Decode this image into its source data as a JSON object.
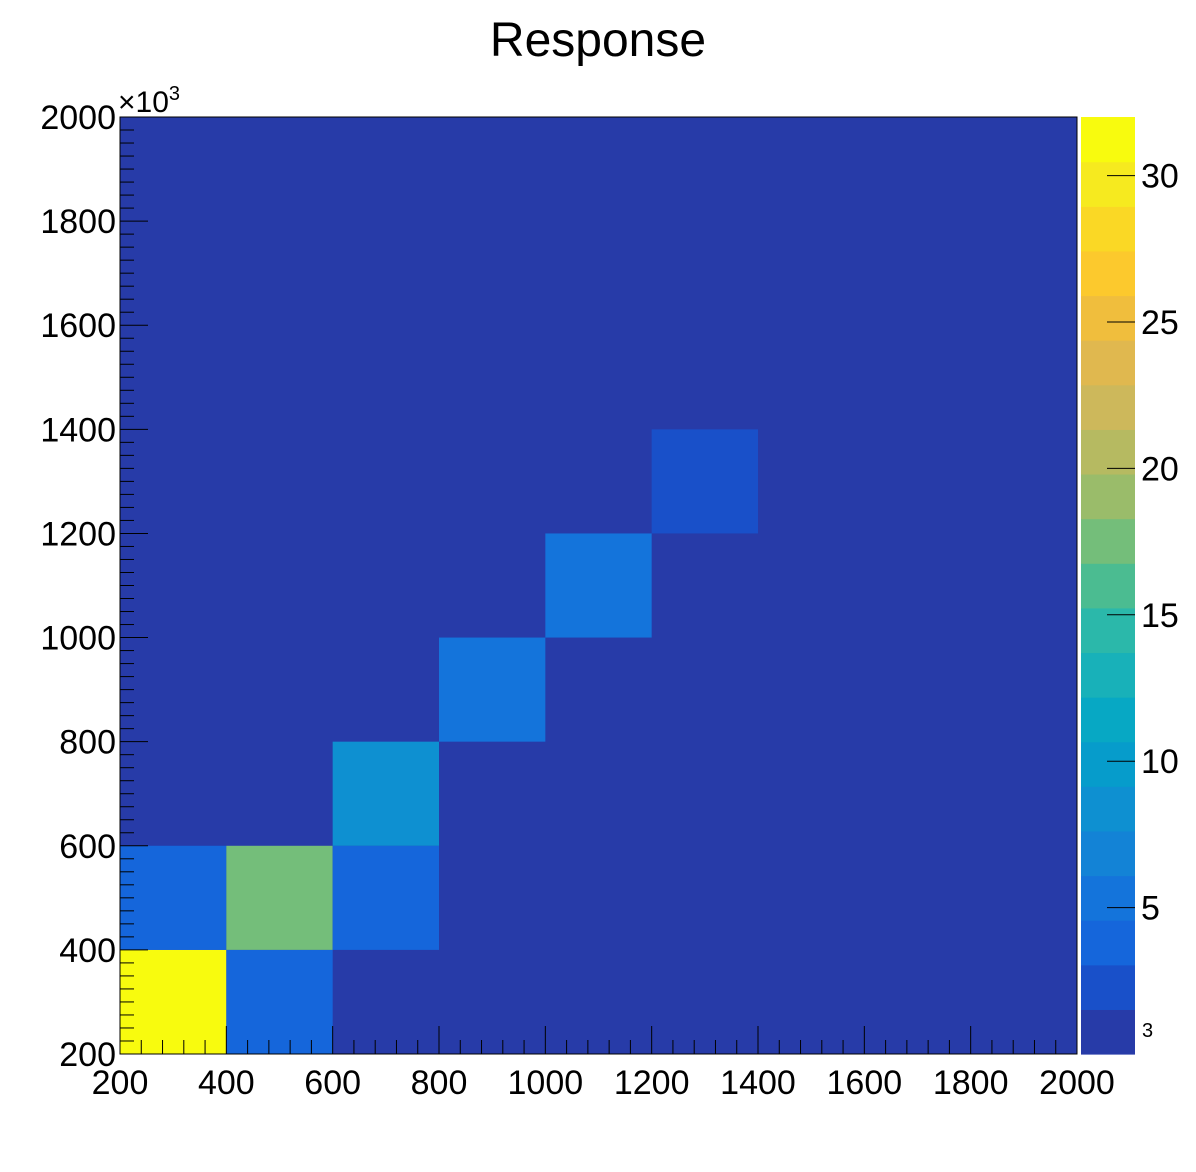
{
  "chart_data": {
    "type": "heatmap",
    "title": "Response",
    "xlabel": "",
    "ylabel": "",
    "xlim": [
      200,
      2000
    ],
    "ylim": [
      200,
      2000
    ],
    "y_multiplier": "×10",
    "y_multiplier_exp": "3",
    "z_multiplier_exp": "3",
    "x_ticks": [
      200,
      400,
      600,
      800,
      1000,
      1200,
      1400,
      1600,
      1800,
      2000
    ],
    "x_tick_labels": [
      "200",
      "400",
      "600",
      "800",
      "1000",
      "1200",
      "1400",
      "1600",
      "1800",
      "2000"
    ],
    "y_ticks": [
      200,
      400,
      600,
      800,
      1000,
      1200,
      1400,
      1600,
      1800,
      2000
    ],
    "y_tick_labels": [
      "200",
      "400",
      "600",
      "800",
      "1000",
      "1200",
      "1400",
      "1600",
      "1800",
      "2000"
    ],
    "bin_width": 200,
    "bins": [
      {
        "x": [
          200,
          400
        ],
        "y": [
          200,
          400
        ],
        "z": 32
      },
      {
        "x": [
          400,
          600
        ],
        "y": [
          200,
          400
        ],
        "z": 3.5
      },
      {
        "x": [
          200,
          400
        ],
        "y": [
          400,
          600
        ],
        "z": 3.5
      },
      {
        "x": [
          400,
          600
        ],
        "y": [
          400,
          600
        ],
        "z": 18
      },
      {
        "x": [
          600,
          800
        ],
        "y": [
          400,
          600
        ],
        "z": 3.5
      },
      {
        "x": [
          600,
          800
        ],
        "y": [
          600,
          800
        ],
        "z": 9
      },
      {
        "x": [
          800,
          1000
        ],
        "y": [
          800,
          1000
        ],
        "z": 6
      },
      {
        "x": [
          1000,
          1200
        ],
        "y": [
          1000,
          1200
        ],
        "z": 5
      },
      {
        "x": [
          1200,
          1400
        ],
        "y": [
          1200,
          1400
        ],
        "z": 3
      }
    ],
    "background_z": 0,
    "zlim": [
      0,
      32
    ],
    "z_ticks": [
      5,
      10,
      15,
      20,
      25,
      30
    ],
    "z_tick_labels": [
      "5",
      "10",
      "15",
      "20",
      "25",
      "30"
    ],
    "palette": [
      "#273ba8",
      "#1950c9",
      "#1566db",
      "#1474db",
      "#1383d6",
      "#0e90d1",
      "#069ccb",
      "#07a8c4",
      "#18b1b9",
      "#2bb8aa",
      "#4bbc91",
      "#74be7a",
      "#9abc6a",
      "#b6ba61",
      "#cdb85b",
      "#e0b84f",
      "#f0be3d",
      "#fcc92d",
      "#fad825",
      "#f6ea1f",
      "#f8fb0e"
    ],
    "grid": false
  }
}
